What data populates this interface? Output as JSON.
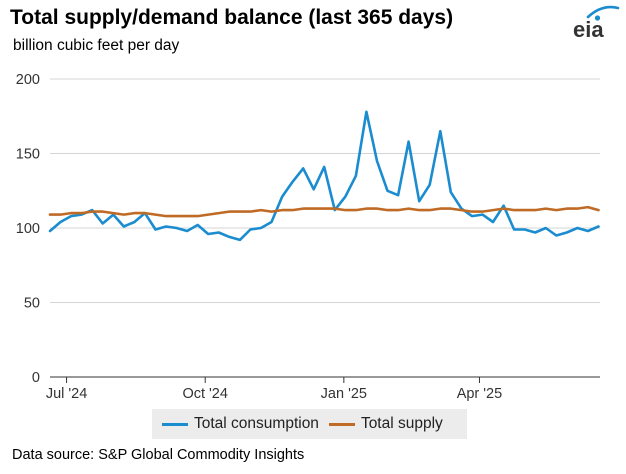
{
  "title": "Total supply/demand balance (last 365 days)",
  "subtitle": "billion cubic feet per day",
  "logo_text": "eia",
  "source": "Data source: S&P Global Commodity Insights",
  "colors": {
    "consumption": "#1a8ccf",
    "supply": "#bf6a25",
    "grid": "#d4d4d4",
    "axis": "#333333"
  },
  "chart_data": {
    "type": "line",
    "x": [
      "2024-06-20",
      "2024-06-27",
      "2024-07-04",
      "2024-07-11",
      "2024-07-18",
      "2024-07-25",
      "2024-08-01",
      "2024-08-08",
      "2024-08-15",
      "2024-08-22",
      "2024-08-29",
      "2024-09-05",
      "2024-09-12",
      "2024-09-19",
      "2024-09-26",
      "2024-10-03",
      "2024-10-10",
      "2024-10-17",
      "2024-10-24",
      "2024-10-31",
      "2024-11-07",
      "2024-11-14",
      "2024-11-21",
      "2024-11-28",
      "2024-12-05",
      "2024-12-12",
      "2024-12-19",
      "2024-12-26",
      "2025-01-02",
      "2025-01-09",
      "2025-01-16",
      "2025-01-23",
      "2025-01-30",
      "2025-02-06",
      "2025-02-13",
      "2025-02-20",
      "2025-02-27",
      "2025-03-06",
      "2025-03-13",
      "2025-03-20",
      "2025-03-27",
      "2025-04-03",
      "2025-04-10",
      "2025-04-17",
      "2025-04-24",
      "2025-05-01",
      "2025-05-08",
      "2025-05-15",
      "2025-05-22",
      "2025-05-29",
      "2025-06-05",
      "2025-06-12",
      "2025-06-19"
    ],
    "series": [
      {
        "name": "Total consumption",
        "values": [
          98,
          104,
          108,
          109,
          112,
          103,
          109,
          101,
          104,
          110,
          99,
          101,
          100,
          98,
          102,
          96,
          97,
          94,
          92,
          99,
          100,
          104,
          121,
          131,
          140,
          126,
          141,
          112,
          121,
          135,
          178,
          145,
          125,
          122,
          158,
          118,
          129,
          165,
          124,
          113,
          108,
          109,
          104,
          115,
          99,
          99,
          97,
          100,
          95,
          97,
          100,
          98,
          101
        ]
      },
      {
        "name": "Total supply",
        "values": [
          109,
          109,
          110,
          110,
          111,
          111,
          110,
          109,
          110,
          110,
          109,
          108,
          108,
          108,
          108,
          109,
          110,
          111,
          111,
          111,
          112,
          111,
          112,
          112,
          113,
          113,
          113,
          113,
          112,
          112,
          113,
          113,
          112,
          112,
          113,
          112,
          112,
          113,
          113,
          112,
          111,
          111,
          112,
          113,
          112,
          112,
          112,
          113,
          112,
          113,
          113,
          114,
          112
        ]
      }
    ],
    "x_tick_labels": [
      "Jul '24",
      "Oct '24",
      "Jan '25",
      "Apr '25"
    ],
    "x_tick_dates": [
      "2024-07-01",
      "2024-10-01",
      "2025-01-01",
      "2025-04-01"
    ],
    "y_ticks": [
      0,
      50,
      100,
      150,
      200
    ],
    "xlim": [
      "2024-06-20",
      "2025-06-20"
    ],
    "ylim": [
      0,
      200
    ],
    "grid": "horizontal",
    "legend_position": "bottom"
  }
}
